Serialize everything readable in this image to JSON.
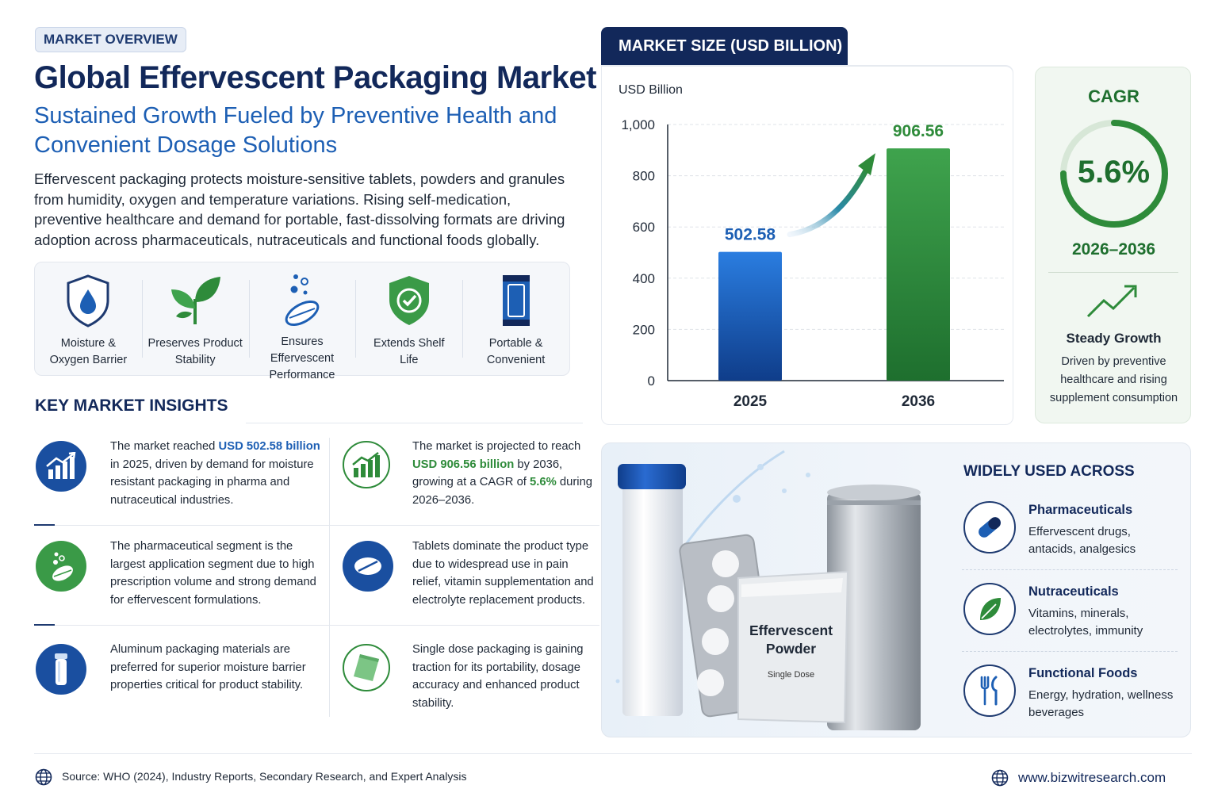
{
  "header": {
    "badge": "MARKET OVERVIEW",
    "title": "Global Effervescent Packaging Market",
    "subtitle": "Sustained Growth Fueled by Preventive Health and Convenient Dosage Solutions",
    "intro": "Effervescent packaging protects moisture-sensitive tablets, powders and granules from humidity, oxygen and temperature variations. Rising self-medication, preventive healthcare and demand for portable, fast-dissolving formats are driving adoption across pharmaceuticals, nutraceuticals and functional foods globally."
  },
  "features": [
    {
      "label": "Moisture &\nOxygen Barrier",
      "icon": "shield-drop-icon"
    },
    {
      "label": "Preserves Product\nStability",
      "icon": "leaf-plant-icon"
    },
    {
      "label": "Ensures Effervescent\nPerformance",
      "icon": "fizzing-tablet-icon"
    },
    {
      "label": "Extends Shelf\nLife",
      "icon": "shield-check-icon"
    },
    {
      "label": "Portable &\nConvenient",
      "icon": "tube-pack-icon"
    }
  ],
  "insights": {
    "title": "KEY MARKET INSIGHTS",
    "items": [
      {
        "icon": "bar-growth-icon",
        "pre": "The market reached ",
        "highlight": "USD 502.58 billion",
        "post": " in 2025, driven by demand for moisture resistant packaging in pharma and nutraceutical industries."
      },
      {
        "icon": "bar-growth-green-icon",
        "pre": "The market is projected to reach ",
        "highlight": "USD 906.56 billion",
        "mid": " by 2036, growing at a CAGR of ",
        "highlight2": "5.6%",
        "post": " during 2026–2036."
      },
      {
        "icon": "fizzing-tablet-icon",
        "text": "The pharmaceutical segment is the largest application segment due to high prescription volume and strong demand for effervescent formulations."
      },
      {
        "icon": "tablet-icon",
        "text": "Tablets dominate the product type due to widespread use in pain relief, vitamin supplementation and electrolyte replacement products."
      },
      {
        "icon": "aluminum-tube-icon",
        "text": "Aluminum packaging materials are preferred for superior moisture barrier properties critical for product stability."
      },
      {
        "icon": "sachet-icon",
        "text": "Single dose packaging is gaining traction for its portability, dosage accuracy and enhanced product stability."
      }
    ]
  },
  "chart_panel": {
    "tab": "MARKET SIZE (USD BILLION)"
  },
  "chart_data": {
    "type": "bar",
    "title": "MARKET SIZE (USD BILLION)",
    "ylabel": "USD Billion",
    "categories": [
      "2025",
      "2036"
    ],
    "values": [
      502.58,
      906.56
    ],
    "value_labels": [
      "502.58",
      "906.56"
    ],
    "ylim": [
      0,
      1000
    ],
    "yticks": [
      0,
      200,
      400,
      600,
      800,
      1000
    ],
    "ytick_labels": [
      "0",
      "200",
      "400",
      "600",
      "800",
      "1,000"
    ],
    "grid": true,
    "colors": [
      "#1a63c2",
      "#2e8b3a"
    ]
  },
  "cagr": {
    "title": "CAGR",
    "value": "5.6%",
    "period": "2026–2036",
    "heading": "Steady Growth",
    "description": "Driven by preventive healthcare and rising supplement consumption",
    "ring_fraction": 0.75
  },
  "products": {
    "sachet_title": "Effervescent Powder",
    "sachet_subtitle": "Single Dose"
  },
  "uses": {
    "title": "WIDELY USED ACROSS",
    "items": [
      {
        "heading": "Pharmaceuticals",
        "description": "Effervescent drugs, antacids, analgesics",
        "icon": "capsule-icon"
      },
      {
        "heading": "Nutraceuticals",
        "description": "Vitamins, minerals, electrolytes, immunity",
        "icon": "leaf-icon"
      },
      {
        "heading": "Functional Foods",
        "description": "Energy, hydration, wellness beverages",
        "icon": "fork-knife-icon"
      }
    ]
  },
  "footer": {
    "source": "Source: WHO (2024), Industry Reports, Secondary Research, and Expert Analysis",
    "website": "www.bizwitresearch.com"
  },
  "colors": {
    "navy": "#12285a",
    "blue": "#1d5fb4",
    "green": "#2e8b3a"
  }
}
